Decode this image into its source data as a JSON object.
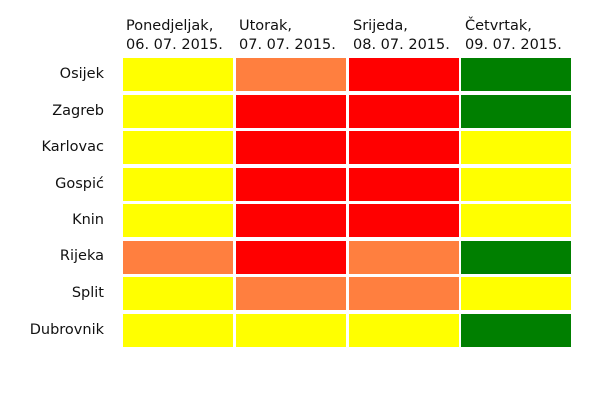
{
  "chart_data": {
    "type": "heatmap",
    "columns": [
      {
        "day": "Ponedjeljak,",
        "date": "06. 07. 2015."
      },
      {
        "day": "Utorak,",
        "date": "07. 07. 2015."
      },
      {
        "day": "Srijeda,",
        "date": "08. 07. 2015."
      },
      {
        "day": "Četvrtak,",
        "date": "09. 07. 2015."
      }
    ],
    "rows": [
      "Osijek",
      "Zagreb",
      "Karlovac",
      "Gospić",
      "Knin",
      "Rijeka",
      "Split",
      "Dubrovnik"
    ],
    "values": [
      [
        "yellow",
        "orange",
        "red",
        "green"
      ],
      [
        "yellow",
        "red",
        "red",
        "green"
      ],
      [
        "yellow",
        "red",
        "red",
        "yellow"
      ],
      [
        "yellow",
        "red",
        "red",
        "yellow"
      ],
      [
        "yellow",
        "red",
        "red",
        "yellow"
      ],
      [
        "orange",
        "red",
        "orange",
        "green"
      ],
      [
        "yellow",
        "orange",
        "orange",
        "yellow"
      ],
      [
        "yellow",
        "yellow",
        "yellow",
        "green"
      ]
    ],
    "colors": {
      "yellow": "#ffff00",
      "orange": "#ff7f3f",
      "red": "#ff0000",
      "green": "#007f00"
    }
  }
}
